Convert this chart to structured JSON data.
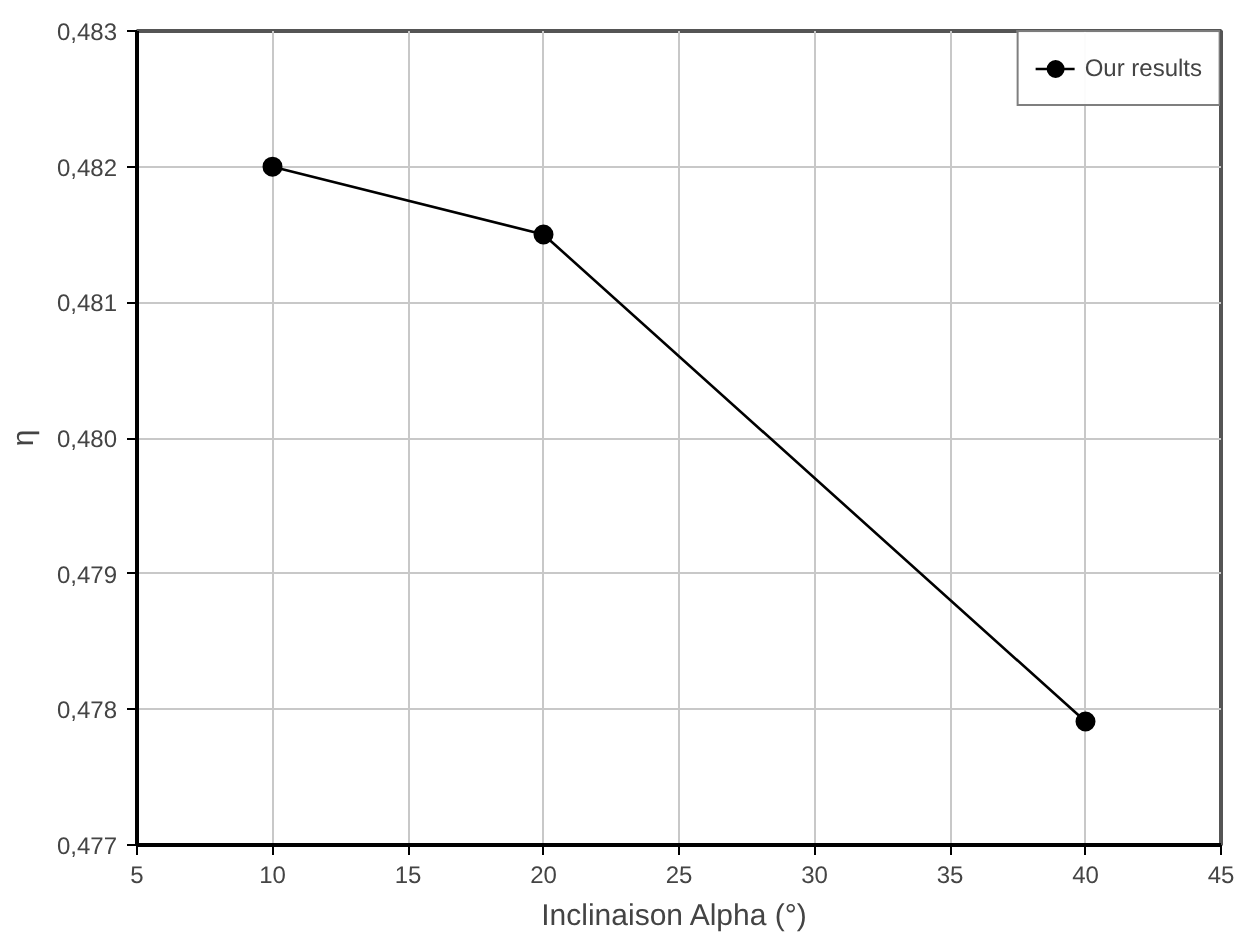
{
  "chart_data": {
    "type": "line",
    "xlabel": "Inclinaison  Alpha (°)",
    "ylabel": "η",
    "x": [
      10,
      20,
      40
    ],
    "series": [
      {
        "name": "Our results",
        "color": "#000000",
        "values": [
          0.482,
          0.4815,
          0.47791
        ]
      }
    ],
    "xlim": [
      5,
      45
    ],
    "xticks": [
      5,
      10,
      15,
      20,
      25,
      30,
      35,
      40,
      45
    ],
    "ylim": [
      0.477,
      0.483
    ],
    "yticks": [
      {
        "value": 0.477,
        "label": "0,477"
      },
      {
        "value": 0.478,
        "label": "0,478"
      },
      {
        "value": 0.479,
        "label": "0,479"
      },
      {
        "value": 0.48,
        "label": "0,480"
      },
      {
        "value": 0.481,
        "label": "0,481"
      },
      {
        "value": 0.482,
        "label": "0,482"
      },
      {
        "value": 0.483,
        "label": "0,483"
      }
    ],
    "grid": true,
    "legend": "top right",
    "marker": "circle",
    "line_style": "solid"
  }
}
